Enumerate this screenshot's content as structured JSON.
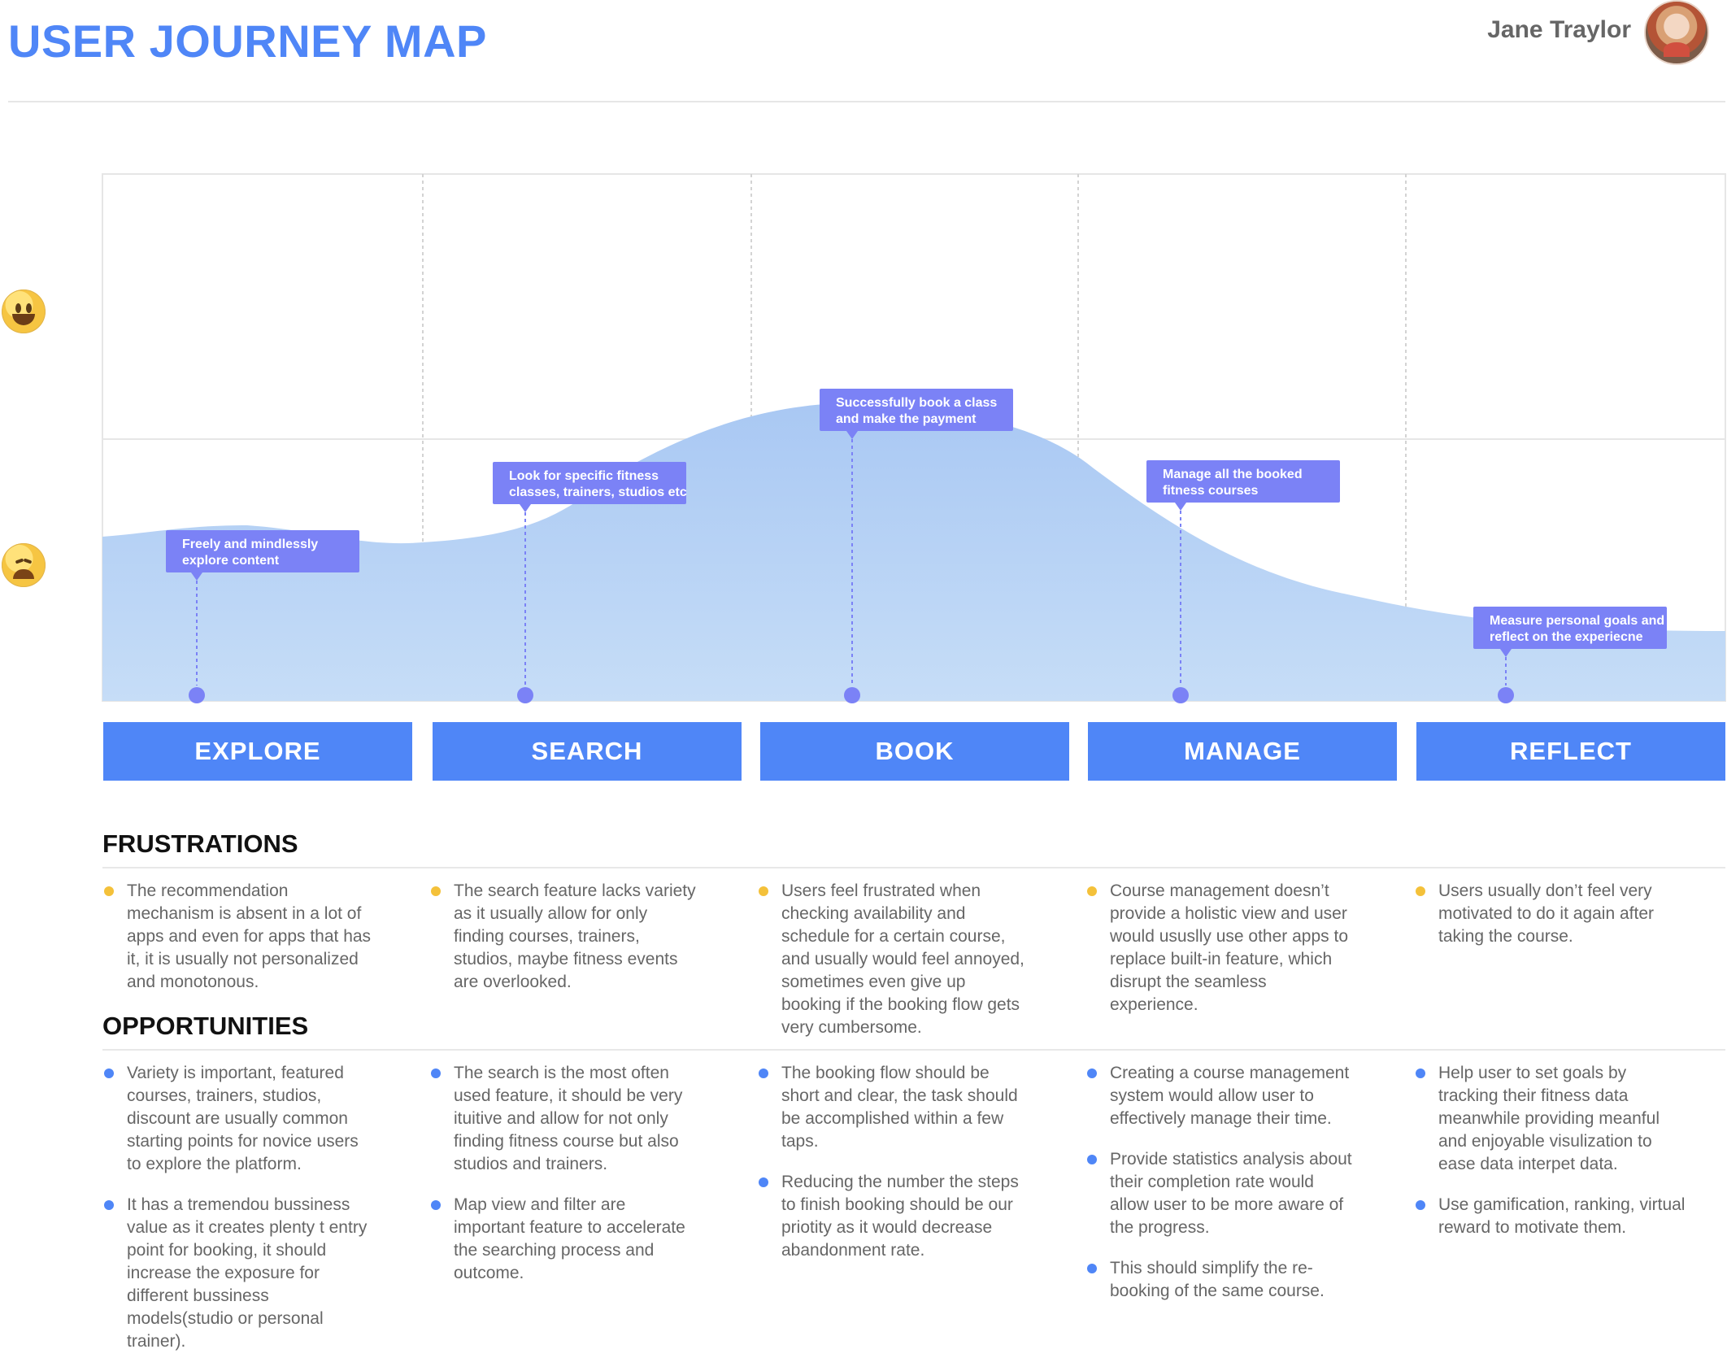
{
  "header": {
    "title": "USER JOURNEY MAP",
    "user_name": "Jane Traylor"
  },
  "colors": {
    "primary": "#4f86f7",
    "curve_fill": "#b9d3f5",
    "callout": "#7b82f6",
    "yellow_bullet": "#f4c13a",
    "text_gray": "#666666"
  },
  "moods": [
    "grinning-face-icon",
    "weary-face-icon"
  ],
  "journey": {
    "phases": [
      {
        "label": "EXPLORE",
        "callout": [
          "Freely and mindlessly",
          "explore content"
        ]
      },
      {
        "label": "SEARCH",
        "callout": [
          "Look for specific fitness",
          "classes, trainers, studios etc"
        ]
      },
      {
        "label": "BOOK",
        "callout": [
          "Successfully book a class",
          "and make the payment"
        ]
      },
      {
        "label": "MANAGE",
        "callout": [
          "Manage all the booked",
          "fitness courses"
        ]
      },
      {
        "label": "REFLECT",
        "callout": [
          "Measure personal goals and",
          "reflect on the experiecne"
        ]
      }
    ]
  },
  "sections": {
    "frustrations_title": "FRUSTRATIONS",
    "opportunities_title": "OPPORTUNITIES",
    "frustrations": [
      [
        "The recommendation mechanism is absent in a lot of apps and even for apps that has it, it is usually not personalized and monotonous."
      ],
      [
        "The search feature lacks variety as it usually allow for only finding courses, trainers, studios, maybe fitness events are overlooked."
      ],
      [
        "Users feel frustrated when checking availability and schedule for a certain course,  and usually would feel annoyed, sometimes even give up booking if the booking flow gets very cumbersome."
      ],
      [
        "Course management doesn’t provide a holistic view and user would ususlly use other apps to replace built-in feature, which disrupt the seamless experience."
      ],
      [
        "Users usually don’t feel very motivated to do it again after taking the course."
      ]
    ],
    "opportunities": [
      [
        "Variety is important, featured courses, trainers, studios, discount are usually common starting points for novice users to explore the platform.",
        "It has a tremendou bussiness value as it creates plenty t entry point for booking, it should increase the exposure for different bussiness models(studio or personal trainer)."
      ],
      [
        "The search is the most often used feature, it should be very ituitive and allow for not only finding fitness course but also studios and trainers.",
        "Map view and filter are important feature to accelerate the searching process and outcome."
      ],
      [
        "The booking flow should be short and clear, the task should be accomplished within a few taps.",
        "Reducing the number the steps to finish booking should be our priotity as it would decrease abandonment rate."
      ],
      [
        "Creating a course management system would allow user to effectively manage their time.",
        "Provide statistics analysis about their completion rate would allow user to be more aware of the progress.",
        "This should simplify the re-booking of the same course."
      ],
      [
        "Help user to set goals by tracking their fitness data meanwhile providing meanful and enjoyable visulization to ease data interpet data.",
        "Use gamification, ranking, virtual reward to motivate them."
      ]
    ]
  }
}
